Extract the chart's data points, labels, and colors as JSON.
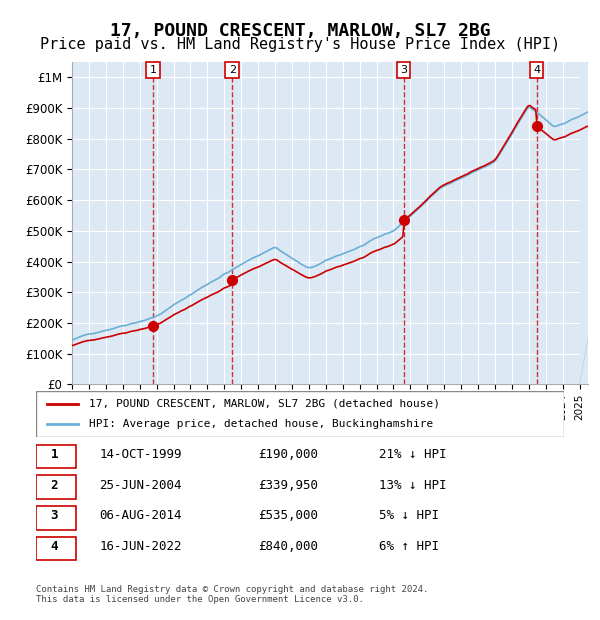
{
  "title": "17, POUND CRESCENT, MARLOW, SL7 2BG",
  "subtitle": "Price paid vs. HM Land Registry's House Price Index (HPI)",
  "title_fontsize": 13,
  "subtitle_fontsize": 11,
  "ylabel": "",
  "xlabel": "",
  "ylim": [
    0,
    1050000
  ],
  "xlim_start": 1995.0,
  "xlim_end": 2025.5,
  "background_color": "#dce9f5",
  "plot_bg_color": "#dce9f5",
  "grid_color": "#ffffff",
  "hpi_color": "#6baed6",
  "price_color": "#cc0000",
  "sale_marker_color": "#cc0000",
  "dashed_line_color": "#cc0000",
  "legend_label_price": "17, POUND CRESCENT, MARLOW, SL7 2BG (detached house)",
  "legend_label_hpi": "HPI: Average price, detached house, Buckinghamshire",
  "sale_dates": [
    1999.79,
    2004.48,
    2014.6,
    2022.46
  ],
  "sale_prices": [
    190000,
    339950,
    535000,
    840000
  ],
  "sale_labels": [
    "1",
    "2",
    "3",
    "4"
  ],
  "table_data": [
    [
      "1",
      "14-OCT-1999",
      "£190,000",
      "21% ↓ HPI"
    ],
    [
      "2",
      "25-JUN-2004",
      "£339,950",
      "13% ↓ HPI"
    ],
    [
      "3",
      "06-AUG-2014",
      "£535,000",
      "5% ↓ HPI"
    ],
    [
      "4",
      "16-JUN-2022",
      "£840,000",
      "6% ↑ HPI"
    ]
  ],
  "footer": "Contains HM Land Registry data © Crown copyright and database right 2024.\nThis data is licensed under the Open Government Licence v3.0.",
  "yticks": [
    0,
    100000,
    200000,
    300000,
    400000,
    500000,
    600000,
    700000,
    800000,
    900000,
    1000000
  ],
  "ytick_labels": [
    "£0",
    "£100K",
    "£200K",
    "£300K",
    "£400K",
    "£500K",
    "£600K",
    "£700K",
    "£800K",
    "£900K",
    "£1M"
  ]
}
